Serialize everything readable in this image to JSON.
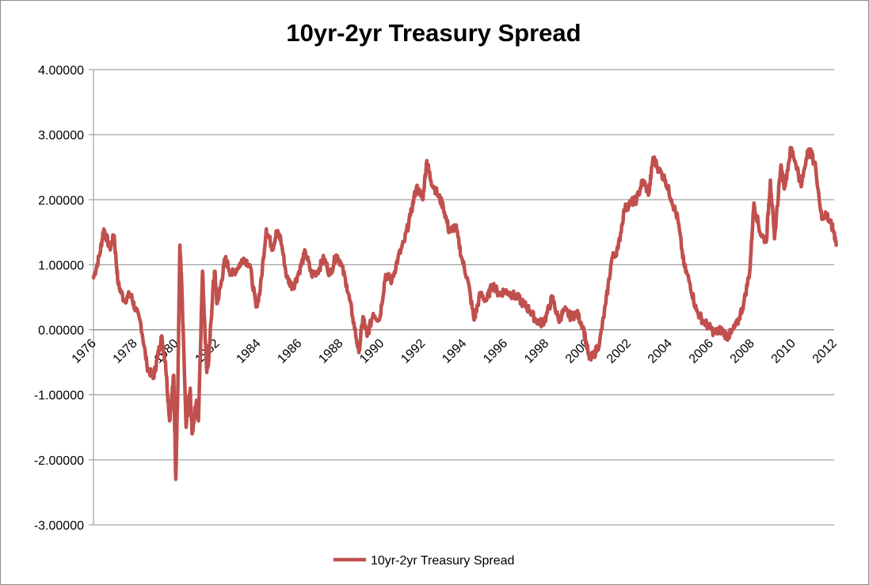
{
  "chart_data": {
    "type": "line",
    "title": "10yr-2yr Treasury Spread",
    "xlabel": "",
    "ylabel": "",
    "xlim": [
      1976,
      2012
    ],
    "ylim": [
      -3,
      4
    ],
    "y_ticks": [
      4,
      3,
      2,
      1,
      0,
      -1,
      -2,
      -3
    ],
    "y_tick_labels": [
      "4.00000",
      "3.00000",
      "2.00000",
      "1.00000",
      "0.00000",
      "-1.00000",
      "-2.00000",
      "-3.00000"
    ],
    "x_ticks": [
      1976,
      1978,
      1980,
      1982,
      1984,
      1986,
      1988,
      1990,
      1992,
      1994,
      1996,
      1998,
      2000,
      2002,
      2004,
      2006,
      2008,
      2010,
      2012
    ],
    "x_tick_labels": [
      "1976",
      "1978",
      "1980",
      "1982",
      "1984",
      "1986",
      "1988",
      "1990",
      "1992",
      "1994",
      "1996",
      "1998",
      "2000",
      "2002",
      "2004",
      "2006",
      "2008",
      "2010",
      "2012"
    ],
    "grid": "horizontal",
    "legend_position": "bottom",
    "series": [
      {
        "name": "10yr-2yr Treasury Spread",
        "color": "#c0504d",
        "x": [
          1976.0,
          1976.3,
          1976.5,
          1976.8,
          1977.0,
          1977.2,
          1977.5,
          1977.8,
          1978.0,
          1978.3,
          1978.6,
          1978.9,
          1979.1,
          1979.3,
          1979.5,
          1979.7,
          1979.9,
          1980.0,
          1980.1,
          1980.2,
          1980.3,
          1980.5,
          1980.7,
          1980.8,
          1981.0,
          1981.1,
          1981.3,
          1981.5,
          1981.6,
          1981.8,
          1981.9,
          1982.0,
          1982.2,
          1982.4,
          1982.7,
          1983.0,
          1983.3,
          1983.6,
          1983.9,
          1984.1,
          1984.4,
          1984.7,
          1984.9,
          1985.1,
          1985.4,
          1985.7,
          1986.0,
          1986.3,
          1986.6,
          1986.9,
          1987.2,
          1987.5,
          1987.8,
          1988.0,
          1988.3,
          1988.6,
          1988.9,
          1989.1,
          1989.3,
          1989.6,
          1989.9,
          1990.2,
          1990.5,
          1990.8,
          1991.1,
          1991.4,
          1991.7,
          1992.0,
          1992.2,
          1992.4,
          1992.7,
          1993.0,
          1993.3,
          1993.6,
          1993.9,
          1994.2,
          1994.5,
          1994.8,
          1995.1,
          1995.4,
          1995.7,
          1996.0,
          1996.3,
          1996.6,
          1996.9,
          1997.2,
          1997.5,
          1997.8,
          1998.0,
          1998.3,
          1998.6,
          1998.9,
          1999.2,
          1999.5,
          1999.8,
          2000.1,
          2000.3,
          2000.6,
          2000.9,
          2001.2,
          2001.5,
          2001.8,
          2002.1,
          2002.4,
          2002.7,
          2003.0,
          2003.2,
          2003.5,
          2003.8,
          2004.1,
          2004.4,
          2004.7,
          2005.0,
          2005.3,
          2005.6,
          2005.9,
          2006.2,
          2006.5,
          2006.8,
          2007.0,
          2007.3,
          2007.6,
          2007.9,
          2008.1,
          2008.4,
          2008.7,
          2008.9,
          2009.1,
          2009.4,
          2009.6,
          2009.9,
          2010.2,
          2010.4,
          2010.7,
          2010.9,
          2011.1,
          2011.4,
          2011.6,
          2011.8,
          2012.0,
          2012.1
        ],
        "values": [
          0.8,
          1.15,
          1.55,
          1.25,
          1.45,
          0.7,
          0.45,
          0.55,
          0.35,
          0.1,
          -0.55,
          -0.75,
          -0.45,
          -0.1,
          -0.5,
          -1.4,
          -0.7,
          -2.3,
          -0.9,
          1.3,
          0.6,
          -1.5,
          -0.9,
          -1.6,
          -1.1,
          -1.4,
          0.9,
          -0.6,
          -0.5,
          0.6,
          0.9,
          0.4,
          0.7,
          1.1,
          0.85,
          0.95,
          1.1,
          1.0,
          0.35,
          0.6,
          1.55,
          1.25,
          1.5,
          1.4,
          0.8,
          0.65,
          0.9,
          1.2,
          0.85,
          0.9,
          1.1,
          0.85,
          1.15,
          1.05,
          0.7,
          0.2,
          -0.35,
          0.2,
          -0.1,
          0.25,
          0.15,
          0.85,
          0.75,
          1.1,
          1.35,
          1.75,
          2.2,
          2.0,
          2.6,
          2.3,
          2.1,
          1.9,
          1.5,
          1.6,
          1.1,
          0.75,
          0.15,
          0.55,
          0.45,
          0.7,
          0.55,
          0.6,
          0.55,
          0.5,
          0.4,
          0.3,
          0.15,
          0.1,
          0.2,
          0.5,
          0.15,
          0.3,
          0.2,
          0.25,
          0.05,
          -0.45,
          -0.4,
          -0.2,
          0.4,
          1.1,
          1.25,
          1.85,
          1.95,
          2.0,
          2.3,
          2.1,
          2.65,
          2.45,
          2.3,
          2.0,
          1.7,
          1.0,
          0.7,
          0.3,
          0.15,
          0.05,
          -0.05,
          0.0,
          -0.1,
          -0.05,
          0.1,
          0.4,
          0.9,
          1.95,
          1.5,
          1.35,
          2.3,
          1.4,
          2.5,
          2.2,
          2.8,
          2.5,
          2.2,
          2.75,
          2.7,
          2.5,
          1.7,
          1.8,
          1.65,
          1.5,
          1.3
        ]
      }
    ]
  }
}
